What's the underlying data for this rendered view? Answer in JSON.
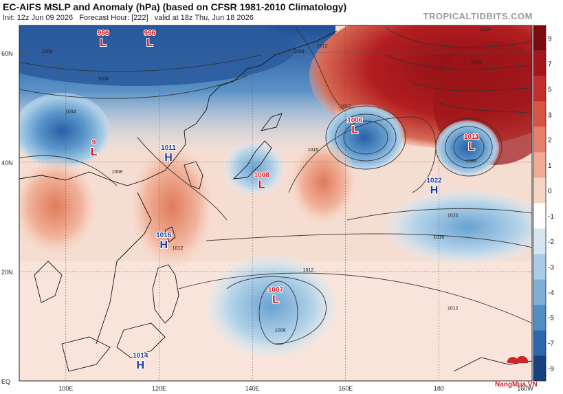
{
  "header": {
    "title": "EC-AIFS MSLP and Anomaly (hPa) (based on CFSR 1981-2010 Climatology)",
    "init": "Init: 12z Jun 09 2026",
    "forecast_hour": "Forecast Hour: [222]",
    "valid": "valid at 18z Thu, Jun 18 2026",
    "brand": "TROPICALTIDBITS.COM"
  },
  "watermark": "NangMua.VN",
  "colorbar": {
    "ticks": [
      "9",
      "7",
      "5",
      "3",
      "2",
      "1",
      "0",
      "-1",
      "-2",
      "-3",
      "-4",
      "-5",
      "-7",
      "-9"
    ],
    "colors": [
      "#7a0c10",
      "#a5151a",
      "#c22f2b",
      "#d75442",
      "#e6806a",
      "#f0ab94",
      "#f7d5c6",
      "#ffffff",
      "#d4e6f2",
      "#a9cde6",
      "#7fb1d6",
      "#4f8fc4",
      "#2d67ad",
      "#17407f"
    ]
  },
  "axes": {
    "lat_labels": [
      "60N",
      "40N",
      "20N",
      "EQ"
    ],
    "lon_labels": [
      "100E",
      "120E",
      "140E",
      "160E",
      "180",
      "160W"
    ]
  },
  "pressure_centers": [
    {
      "value": "996",
      "type": "L",
      "lon": 108,
      "lat": 62
    },
    {
      "value": "996",
      "type": "L",
      "lon": 118,
      "lat": 62
    },
    {
      "value": "9",
      "type": "L",
      "lon": 106,
      "lat": 42
    },
    {
      "value": "1011",
      "type": "H",
      "lon": 122,
      "lat": 41
    },
    {
      "value": "1008",
      "type": "L",
      "lon": 142,
      "lat": 36
    },
    {
      "value": "1006",
      "type": "L",
      "lon": 162,
      "lat": 46
    },
    {
      "value": "1011",
      "type": "L",
      "lon": 187,
      "lat": 43
    },
    {
      "value": "1022",
      "type": "H",
      "lon": 179,
      "lat": 35
    },
    {
      "value": "1016",
      "type": "H",
      "lon": 121,
      "lat": 25
    },
    {
      "value": "1007",
      "type": "L",
      "lon": 145,
      "lat": 15
    },
    {
      "value": "1014",
      "type": "H",
      "lon": 116,
      "lat": 3
    }
  ],
  "isobar_labels": [
    {
      "text": "1000",
      "lon": 96,
      "lat": 60
    },
    {
      "text": "1004",
      "lon": 108,
      "lat": 55
    },
    {
      "text": "1008",
      "lon": 111,
      "lat": 38
    },
    {
      "text": "1008",
      "lon": 150,
      "lat": 60
    },
    {
      "text": "1012",
      "lon": 155,
      "lat": 61
    },
    {
      "text": "1012",
      "lon": 160,
      "lat": 50
    },
    {
      "text": "1016",
      "lon": 153,
      "lat": 42
    },
    {
      "text": "1016",
      "lon": 187,
      "lat": 40
    },
    {
      "text": "1020",
      "lon": 190,
      "lat": 64
    },
    {
      "text": "1024",
      "lon": 188,
      "lat": 58
    },
    {
      "text": "1020",
      "lon": 183,
      "lat": 30
    },
    {
      "text": "1016",
      "lon": 180,
      "lat": 26
    },
    {
      "text": "1012",
      "lon": 152,
      "lat": 20
    },
    {
      "text": "1012",
      "lon": 124,
      "lat": 24
    },
    {
      "text": "1012",
      "lon": 183,
      "lat": 13
    },
    {
      "text": "1008",
      "lon": 146,
      "lat": 9
    },
    {
      "text": "1004",
      "lon": 101,
      "lat": 49
    }
  ]
}
